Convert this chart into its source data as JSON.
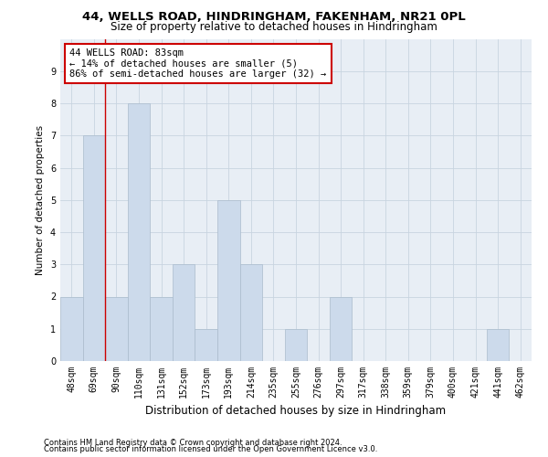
{
  "title1": "44, WELLS ROAD, HINDRINGHAM, FAKENHAM, NR21 0PL",
  "title2": "Size of property relative to detached houses in Hindringham",
  "xlabel": "Distribution of detached houses by size in Hindringham",
  "ylabel": "Number of detached properties",
  "footer1": "Contains HM Land Registry data © Crown copyright and database right 2024.",
  "footer2": "Contains public sector information licensed under the Open Government Licence v3.0.",
  "categories": [
    "48sqm",
    "69sqm",
    "90sqm",
    "110sqm",
    "131sqm",
    "152sqm",
    "173sqm",
    "193sqm",
    "214sqm",
    "235sqm",
    "255sqm",
    "276sqm",
    "297sqm",
    "317sqm",
    "338sqm",
    "359sqm",
    "379sqm",
    "400sqm",
    "421sqm",
    "441sqm",
    "462sqm"
  ],
  "values": [
    2,
    7,
    2,
    8,
    2,
    3,
    1,
    5,
    3,
    0,
    1,
    0,
    2,
    0,
    0,
    0,
    0,
    0,
    0,
    1,
    0
  ],
  "bar_color": "#ccdaeb",
  "bar_edge_color": "#aabbcc",
  "bar_linewidth": 0.5,
  "red_line_x": 1.5,
  "annotation_text": "44 WELLS ROAD: 83sqm\n← 14% of detached houses are smaller (5)\n86% of semi-detached houses are larger (32) →",
  "annotation_box_color": "#ffffff",
  "annotation_box_edge": "#cc0000",
  "ylim": [
    0,
    10
  ],
  "yticks": [
    0,
    1,
    2,
    3,
    4,
    5,
    6,
    7,
    8,
    9,
    10
  ],
  "background_color": "#ffffff",
  "plot_bg_color": "#e8eef5",
  "grid_color": "#c8d4e0",
  "title1_fontsize": 9.5,
  "title2_fontsize": 8.5,
  "xlabel_fontsize": 8.5,
  "ylabel_fontsize": 7.5,
  "tick_fontsize": 7,
  "annotation_fontsize": 7.5,
  "footer_fontsize": 6
}
